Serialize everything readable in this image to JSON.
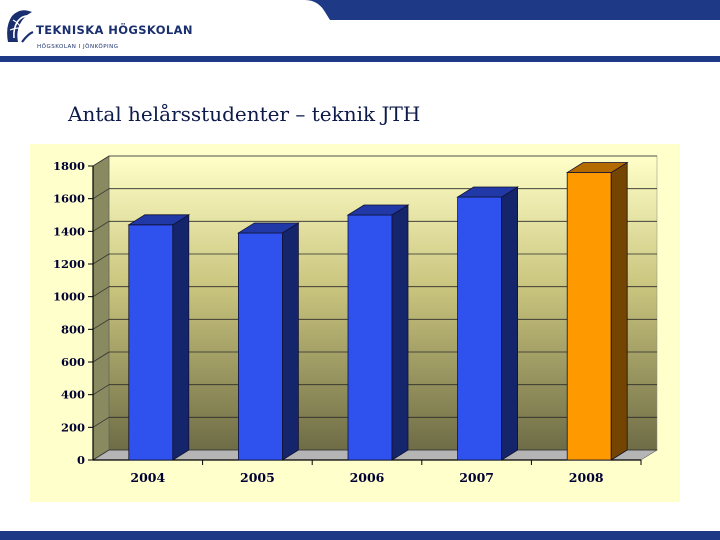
{
  "header": {
    "brand_name": "TEKNISKA HÖGSKOLAN",
    "brand_sub": "HÖGSKOLAN I JÖNKÖPING",
    "accent_color": "#1e3a86",
    "logo_icon": "globe-logo-icon"
  },
  "slide": {
    "title": "Antal helårsstudenter – teknik JTH"
  },
  "chart_data": {
    "type": "bar",
    "title": "",
    "xlabel": "",
    "ylabel": "",
    "categories": [
      "2004",
      "2005",
      "2006",
      "2007",
      "2008"
    ],
    "values": [
      1440,
      1390,
      1500,
      1610,
      1760
    ],
    "ylim": [
      0,
      1800
    ],
    "yticks": [
      "0",
      "200",
      "400",
      "600",
      "800",
      "1000",
      "1200",
      "1400",
      "1600",
      "1800"
    ],
    "grid": true,
    "legend": "none",
    "bar_colors": [
      "#2f52ee",
      "#2f52ee",
      "#2f52ee",
      "#2f52ee",
      "#ff9900"
    ],
    "background_color": "#ffffcc"
  }
}
